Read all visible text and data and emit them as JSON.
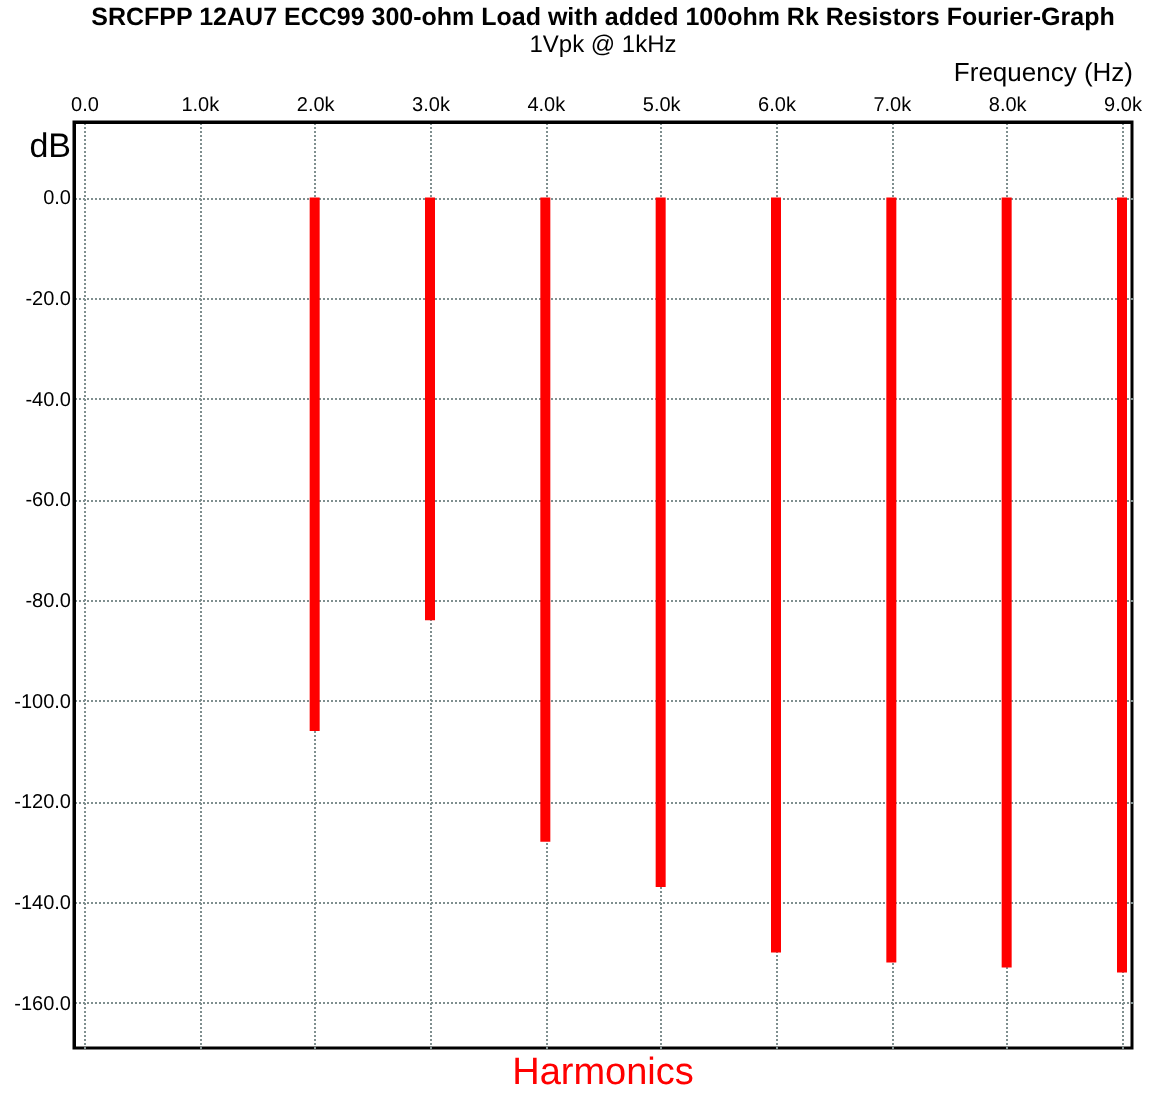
{
  "chart_data": {
    "type": "bar",
    "title": "SRCFPP 12AU7 ECC99 300-ohm Load with added 100ohm Rk Resistors Fourier-Graph",
    "subtitle": "1Vpk @ 1kHz",
    "xlabel": "Frequency  (Hz)",
    "ylabel": "dB",
    "annotations": [
      "Harmonics"
    ],
    "x": [
      1000,
      2000,
      3000,
      4000,
      5000,
      6000,
      7000,
      8000,
      9000
    ],
    "series": [
      {
        "color": "#ff0000",
        "values": [
          0,
          -106,
          -84,
          -128,
          -137,
          -150,
          -152,
          -153,
          -154
        ]
      }
    ],
    "xlim": [
      0,
      9000
    ],
    "xticks": [
      {
        "value": 0,
        "label": "0.0"
      },
      {
        "value": 1000,
        "label": "1.0k"
      },
      {
        "value": 2000,
        "label": "2.0k"
      },
      {
        "value": 3000,
        "label": "3.0k"
      },
      {
        "value": 4000,
        "label": "4.0k"
      },
      {
        "value": 5000,
        "label": "5.0k"
      },
      {
        "value": 6000,
        "label": "6.0k"
      },
      {
        "value": 7000,
        "label": "7.0k"
      },
      {
        "value": 8000,
        "label": "8.0k"
      },
      {
        "value": 9000,
        "label": "9.0k"
      }
    ],
    "ylim": [
      -169,
      15
    ],
    "yticks": [
      {
        "value": 0,
        "label": "0.0"
      },
      {
        "value": -20,
        "label": "-20.0"
      },
      {
        "value": -40,
        "label": "-40.0"
      },
      {
        "value": -60,
        "label": "-60.0"
      },
      {
        "value": -80,
        "label": "-80.0"
      },
      {
        "value": -100,
        "label": "-100.0"
      },
      {
        "value": -120,
        "label": "-120.0"
      },
      {
        "value": -140,
        "label": "-140.0"
      },
      {
        "value": -160,
        "label": "-160.0"
      }
    ],
    "grid": true,
    "legend": false
  }
}
